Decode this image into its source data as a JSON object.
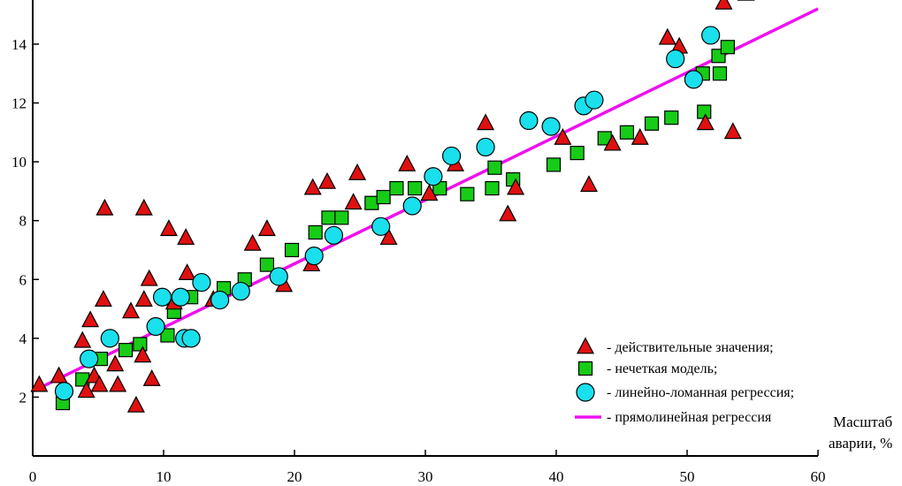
{
  "chart_data": {
    "type": "scatter",
    "title": "",
    "xlabel_lines": [
      "Масштаб",
      "аварии, %"
    ],
    "ylabel": "",
    "xlim": [
      0,
      60
    ],
    "ylim": [
      0,
      15.5
    ],
    "xticks": [
      0,
      10,
      20,
      30,
      40,
      50,
      60
    ],
    "yticks": [
      2,
      4,
      6,
      8,
      10,
      12,
      14
    ],
    "tick_labels": {
      "x": [
        "0",
        "10",
        "20",
        "30",
        "40",
        "50",
        "60"
      ],
      "y": [
        "2",
        "4",
        "6",
        "8",
        "10",
        "12",
        "14"
      ]
    },
    "grid": false,
    "legend_position": "bottom-right",
    "series": [
      {
        "name": "- действительные значения;",
        "marker": "triangle",
        "color": "#e01010",
        "points": [
          [
            0.5,
            2.4
          ],
          [
            2.0,
            2.7
          ],
          [
            3.8,
            3.9
          ],
          [
            4.1,
            2.2
          ],
          [
            4.4,
            4.6
          ],
          [
            4.7,
            2.7
          ],
          [
            5.1,
            2.4
          ],
          [
            5.4,
            5.3
          ],
          [
            5.5,
            8.4
          ],
          [
            6.3,
            3.1
          ],
          [
            6.5,
            2.4
          ],
          [
            7.5,
            4.9
          ],
          [
            7.9,
            1.7
          ],
          [
            8.4,
            3.4
          ],
          [
            8.5,
            5.3
          ],
          [
            8.5,
            8.4
          ],
          [
            8.9,
            6.0
          ],
          [
            9.1,
            2.6
          ],
          [
            10.4,
            7.7
          ],
          [
            10.8,
            5.2
          ],
          [
            11.7,
            7.4
          ],
          [
            11.8,
            6.2
          ],
          [
            13.8,
            5.3
          ],
          [
            16.8,
            7.2
          ],
          [
            17.9,
            7.7
          ],
          [
            19.2,
            5.8
          ],
          [
            21.3,
            6.5
          ],
          [
            21.4,
            9.1
          ],
          [
            22.5,
            9.3
          ],
          [
            24.5,
            8.6
          ],
          [
            24.8,
            9.6
          ],
          [
            27.2,
            7.4
          ],
          [
            28.6,
            9.9
          ],
          [
            30.3,
            8.9
          ],
          [
            32.3,
            9.9
          ],
          [
            34.6,
            11.3
          ],
          [
            36.3,
            8.2
          ],
          [
            36.9,
            9.1
          ],
          [
            40.5,
            10.8
          ],
          [
            42.5,
            9.2
          ],
          [
            44.3,
            10.6
          ],
          [
            46.4,
            10.8
          ],
          [
            48.5,
            14.2
          ],
          [
            49.4,
            13.9
          ],
          [
            51.4,
            11.3
          ],
          [
            52.8,
            15.4
          ],
          [
            53.5,
            11.0
          ],
          [
            54.5,
            15.7
          ]
        ]
      },
      {
        "name": "- нечеткая модель;",
        "marker": "square",
        "color": "#16cc16",
        "points": [
          [
            2.3,
            1.8
          ],
          [
            3.8,
            2.6
          ],
          [
            5.2,
            3.3
          ],
          [
            7.1,
            3.6
          ],
          [
            8.2,
            3.8
          ],
          [
            10.3,
            4.1
          ],
          [
            10.8,
            4.9
          ],
          [
            12.1,
            5.4
          ],
          [
            14.6,
            5.7
          ],
          [
            16.2,
            6.0
          ],
          [
            17.9,
            6.5
          ],
          [
            19.8,
            7.0
          ],
          [
            21.6,
            7.6
          ],
          [
            22.6,
            8.1
          ],
          [
            23.6,
            8.1
          ],
          [
            25.9,
            8.6
          ],
          [
            26.8,
            8.8
          ],
          [
            27.8,
            9.1
          ],
          [
            29.2,
            9.1
          ],
          [
            31.1,
            9.1
          ],
          [
            33.2,
            8.9
          ],
          [
            35.1,
            9.1
          ],
          [
            35.3,
            9.8
          ],
          [
            36.7,
            9.4
          ],
          [
            39.8,
            9.9
          ],
          [
            41.6,
            10.3
          ],
          [
            43.7,
            10.8
          ],
          [
            45.4,
            11.0
          ],
          [
            47.3,
            11.3
          ],
          [
            48.8,
            11.5
          ],
          [
            51.2,
            13.0
          ],
          [
            51.3,
            11.7
          ],
          [
            52.4,
            13.6
          ],
          [
            52.5,
            13.0
          ],
          [
            53.1,
            13.9
          ]
        ]
      },
      {
        "name": "- линейно-ломанная регрессия;",
        "marker": "circle",
        "color": "#19e0ec",
        "points": [
          [
            2.4,
            2.2
          ],
          [
            4.3,
            3.3
          ],
          [
            5.9,
            4.0
          ],
          [
            9.4,
            4.4
          ],
          [
            9.9,
            5.4
          ],
          [
            11.3,
            5.4
          ],
          [
            11.6,
            4.0
          ],
          [
            12.1,
            4.0
          ],
          [
            12.9,
            5.9
          ],
          [
            14.3,
            5.3
          ],
          [
            15.9,
            5.6
          ],
          [
            18.8,
            6.1
          ],
          [
            21.5,
            6.8
          ],
          [
            23.0,
            7.5
          ],
          [
            26.6,
            7.8
          ],
          [
            29.0,
            8.5
          ],
          [
            30.6,
            9.5
          ],
          [
            32.0,
            10.2
          ],
          [
            34.6,
            10.5
          ],
          [
            37.9,
            11.4
          ],
          [
            39.6,
            11.2
          ],
          [
            42.1,
            11.9
          ],
          [
            42.9,
            12.1
          ],
          [
            49.1,
            13.5
          ],
          [
            50.5,
            12.8
          ],
          [
            51.8,
            14.3
          ]
        ]
      },
      {
        "name": "- прямолинейная регрессия",
        "marker": "line",
        "color": "#ee10ee",
        "line": [
          [
            0,
            2.2
          ],
          [
            60,
            15.2
          ]
        ]
      }
    ]
  }
}
